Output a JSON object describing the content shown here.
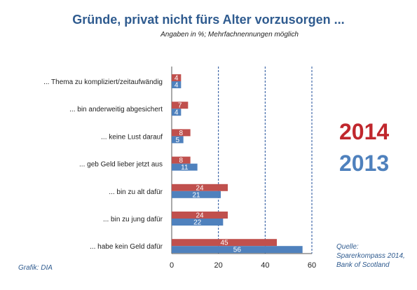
{
  "chart_data": {
    "type": "bar",
    "orientation": "horizontal",
    "title": "Gründe, privat nicht fürs Alter vorzusorgen ...",
    "subtitle": "Angaben in %; Mehrfachnennungen möglich",
    "categories": [
      "... Thema zu kompliziert/zeitaufwändig",
      "... bin anderweitig abgesichert",
      "... keine Lust darauf",
      "... geb Geld lieber jetzt aus",
      "... bin zu alt dafür",
      "... bin zu jung dafür",
      "... habe kein Geld dafür"
    ],
    "series": [
      {
        "name": "2014",
        "color": "#c0504d",
        "values": [
          4,
          7,
          8,
          8,
          24,
          24,
          45
        ]
      },
      {
        "name": "2013",
        "color": "#4f81bd",
        "values": [
          4,
          4,
          5,
          11,
          21,
          22,
          56
        ]
      }
    ],
    "xlim": [
      0,
      60
    ],
    "xticks": [
      0,
      20,
      40,
      60
    ],
    "gridlines": "dashed vertical at 20, 40, 60",
    "legend_position": "right"
  },
  "legend": {
    "label_2014": "2014",
    "label_2013": "2013",
    "color_2014": "#c0272d",
    "color_2013": "#4f81bd"
  },
  "source": {
    "line1": "Quelle:",
    "line2": "Sparerkompass 2014,",
    "line3": "Bank of Scotland"
  },
  "credit": "Grafik: DIA"
}
